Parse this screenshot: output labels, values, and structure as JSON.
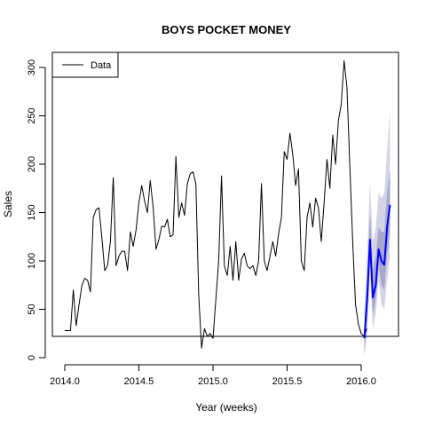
{
  "chart_data": {
    "type": "line",
    "title": "BOYS POCKET MONEY",
    "xlabel": "Year (weeks)",
    "ylabel": "Sales",
    "xlim": [
      2014.0,
      2016.25
    ],
    "ylim": [
      0,
      320
    ],
    "xticks": [
      2014.0,
      2014.5,
      2015.0,
      2015.5,
      2016.0
    ],
    "xtick_labels": [
      "2014.0",
      "2014.5",
      "2015.0",
      "2015.5",
      "2016.0"
    ],
    "yticks": [
      0,
      50,
      100,
      150,
      200,
      250,
      300
    ],
    "ytick_labels": [
      "0",
      "50",
      "100",
      "150",
      "200",
      "250",
      "300"
    ],
    "legend": {
      "position": "top-left",
      "entries": [
        "Data"
      ]
    },
    "grid": false,
    "series": [
      {
        "name": "Data",
        "color": "#000000",
        "x_start": 2014.0,
        "x_step": 0.01923,
        "values": [
          28,
          28,
          28,
          70,
          33,
          55,
          75,
          82,
          80,
          68,
          145,
          153,
          155,
          125,
          90,
          95,
          120,
          186,
          95,
          105,
          110,
          110,
          90,
          130,
          115,
          132,
          160,
          178,
          162,
          150,
          183,
          155,
          112,
          122,
          136,
          135,
          143,
          125,
          127,
          208,
          145,
          160,
          147,
          180,
          190,
          192,
          180,
          65,
          10,
          30,
          22,
          25,
          20,
          60,
          100,
          188,
          95,
          85,
          115,
          80,
          120,
          80,
          102,
          108,
          95,
          92,
          95,
          85,
          100,
          180,
          100,
          90,
          105,
          120,
          105,
          128,
          145,
          213,
          205,
          232,
          210,
          178,
          195,
          100,
          90,
          145,
          160,
          135,
          165,
          155,
          120,
          160,
          205,
          175,
          230,
          200,
          245,
          262,
          307,
          280,
          200,
          120,
          55,
          35,
          25,
          22,
          30
        ]
      },
      {
        "name": "",
        "color": "#0000ff",
        "x_start": 2016.021,
        "x_step": 0.01923,
        "values": [
          20,
          60,
          122,
          62,
          75,
          112,
          100,
          96,
          135,
          158
        ],
        "lo80": [
          5,
          40,
          100,
          45,
          60,
          95,
          75,
          70,
          105,
          130
        ],
        "hi80": [
          35,
          85,
          150,
          90,
          105,
          135,
          130,
          130,
          170,
          195
        ],
        "lo95": [
          0,
          25,
          85,
          30,
          45,
          80,
          55,
          50,
          80,
          105
        ],
        "hi95": [
          50,
          105,
          180,
          120,
          135,
          170,
          165,
          170,
          215,
          255
        ]
      }
    ]
  }
}
